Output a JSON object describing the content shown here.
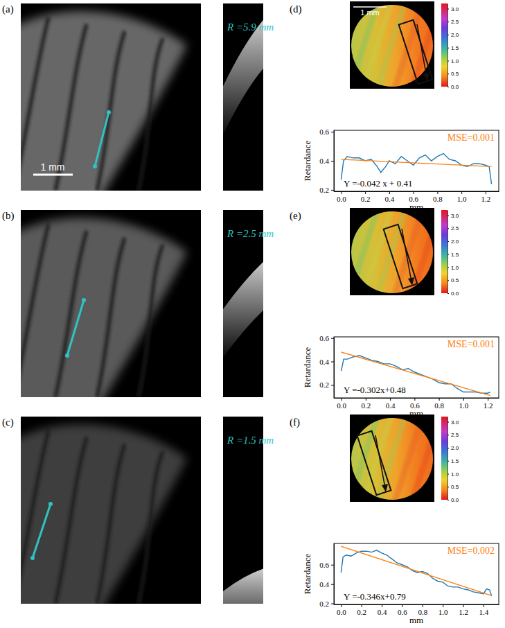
{
  "chart_data": [
    {
      "type": "line",
      "x_label": "mm",
      "y_label": "Retardance",
      "annotations": [
        "MSE=0.001",
        "Y =-0.042 x + 0.41"
      ],
      "xlim": [
        -0.06,
        1.31
      ],
      "ylim": [
        0.19,
        0.61
      ],
      "xticks": [
        {
          "value": 0,
          "label": "0.0"
        },
        0.2,
        0.4,
        0.6,
        0.8,
        {
          "value": 1,
          "label": "1.0"
        },
        1.2
      ],
      "yticks": [
        0.2,
        0.4,
        0.6
      ],
      "series": [
        {
          "color": "#1f77b4",
          "x": [
            0,
            0.02,
            0.05,
            0.1,
            0.15,
            0.2,
            0.25,
            0.3,
            0.33,
            0.37,
            0.4,
            0.45,
            0.5,
            0.55,
            0.6,
            0.65,
            0.7,
            0.75,
            0.8,
            0.85,
            0.9,
            0.95,
            1.0,
            1.05,
            1.1,
            1.15,
            1.2,
            1.23,
            1.25
          ],
          "values": [
            0.27,
            0.4,
            0.43,
            0.42,
            0.42,
            0.4,
            0.41,
            0.36,
            0.32,
            0.36,
            0.4,
            0.38,
            0.43,
            0.4,
            0.37,
            0.42,
            0.44,
            0.4,
            0.43,
            0.45,
            0.41,
            0.4,
            0.37,
            0.36,
            0.38,
            0.38,
            0.37,
            0.36,
            0.24
          ]
        },
        {
          "color": "#ff7f0e",
          "x": [
            0,
            1.25
          ],
          "values": [
            0.41,
            0.36
          ]
        }
      ]
    },
    {
      "type": "line",
      "x_label": "mm",
      "y_label": "Retardance",
      "annotations": [
        "MSE=0.001",
        "Y =-0.302x+0.48"
      ],
      "xlim": [
        -0.06,
        1.29
      ],
      "ylim": [
        0.09,
        0.61
      ],
      "xticks": [
        {
          "value": 0,
          "label": "0.0"
        },
        0.2,
        0.4,
        0.6,
        0.8,
        {
          "value": 1,
          "label": "1.0"
        },
        1.2
      ],
      "yticks": [
        0.2,
        0.4,
        0.6
      ],
      "series": [
        {
          "color": "#1f77b4",
          "x": [
            0,
            0.02,
            0.05,
            0.1,
            0.15,
            0.2,
            0.25,
            0.3,
            0.35,
            0.4,
            0.45,
            0.5,
            0.55,
            0.6,
            0.65,
            0.7,
            0.75,
            0.8,
            0.85,
            0.9,
            0.95,
            1.0,
            1.05,
            1.1,
            1.15,
            1.2,
            1.22
          ],
          "values": [
            0.32,
            0.42,
            0.42,
            0.44,
            0.45,
            0.43,
            0.41,
            0.4,
            0.38,
            0.38,
            0.36,
            0.33,
            0.34,
            0.31,
            0.29,
            0.27,
            0.25,
            0.22,
            0.21,
            0.21,
            0.17,
            0.14,
            0.14,
            0.14,
            0.13,
            0.13,
            0.14
          ]
        },
        {
          "color": "#ff7f0e",
          "x": [
            0,
            1.22
          ],
          "values": [
            0.48,
            0.11
          ]
        }
      ]
    },
    {
      "type": "line",
      "x_label": "mm",
      "y_label": "Retardance",
      "annotations": [
        "MSE=0.002",
        "Y =-0.346x+0.79"
      ],
      "xlim": [
        -0.07,
        1.55
      ],
      "ylim": [
        0.19,
        0.82
      ],
      "xticks": [
        {
          "value": 0,
          "label": "0.0"
        },
        0.2,
        0.4,
        0.6,
        0.8,
        {
          "value": 1,
          "label": "1.0"
        },
        1.2,
        1.4
      ],
      "yticks": [
        0.2,
        0.4,
        0.6
      ],
      "series": [
        {
          "color": "#1f77b4",
          "x": [
            0,
            0.02,
            0.05,
            0.1,
            0.15,
            0.2,
            0.25,
            0.3,
            0.35,
            0.4,
            0.45,
            0.5,
            0.55,
            0.6,
            0.65,
            0.7,
            0.75,
            0.8,
            0.85,
            0.9,
            0.95,
            1.0,
            1.05,
            1.1,
            1.15,
            1.2,
            1.25,
            1.3,
            1.35,
            1.4,
            1.43,
            1.46,
            1.48
          ],
          "values": [
            0.52,
            0.68,
            0.7,
            0.69,
            0.72,
            0.74,
            0.74,
            0.73,
            0.75,
            0.72,
            0.7,
            0.66,
            0.62,
            0.6,
            0.58,
            0.54,
            0.52,
            0.53,
            0.51,
            0.46,
            0.43,
            0.42,
            0.38,
            0.37,
            0.37,
            0.35,
            0.34,
            0.32,
            0.31,
            0.3,
            0.35,
            0.34,
            0.28
          ]
        },
        {
          "color": "#ff7f0e",
          "x": [
            0,
            1.48
          ],
          "values": [
            0.79,
            0.28
          ]
        }
      ]
    }
  ],
  "figure": {
    "images": [
      {
        "label": "(a)",
        "radius_label": "R =5.9 mm",
        "scale_bar": "1 mm"
      },
      {
        "label": "(b)",
        "radius_label": "R =2.5 mm"
      },
      {
        "label": "(c)",
        "radius_label": "R =1.5 mm"
      }
    ],
    "maps": [
      {
        "label": "(d)",
        "scale_bar": "1 mm"
      },
      {
        "label": "(e)"
      },
      {
        "label": "(f)"
      }
    ],
    "colorbar": {
      "range": [
        0,
        3.2
      ],
      "ticks": [
        {
          "value": 0,
          "label": "0.0"
        },
        0.5,
        {
          "value": 1,
          "label": "1.0"
        },
        1.5,
        {
          "value": 2,
          "label": "2.0"
        },
        2.5,
        {
          "value": 3,
          "label": "3.0"
        }
      ]
    }
  }
}
